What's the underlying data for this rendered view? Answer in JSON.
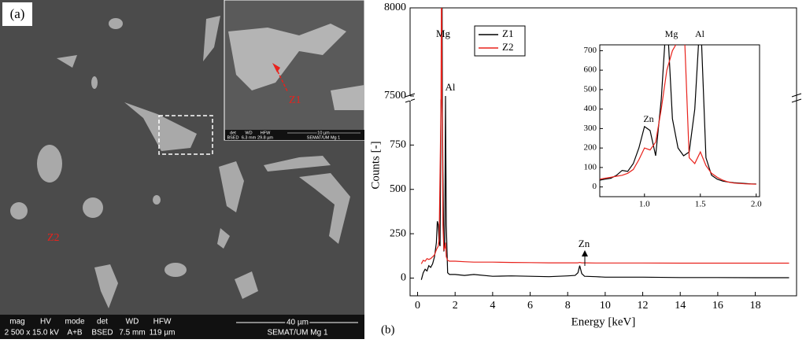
{
  "micrograph": {
    "label": "(a)",
    "zones": [
      "Z1",
      "Z2"
    ],
    "databar": {
      "fields": [
        [
          "mag",
          "2 500 x"
        ],
        [
          "HV",
          "15.0 kV"
        ],
        [
          "mode",
          "A+B"
        ],
        [
          "det",
          "BSED"
        ],
        [
          "WD",
          "7.5 mm"
        ],
        [
          "HFW",
          "119 µm"
        ]
      ],
      "scale": "40 µm",
      "lab": "SEMAT/UM Mg 1"
    },
    "inset_databar": {
      "fields": [
        [
          "det",
          "BSED"
        ],
        [
          "WD",
          "6.3 mm"
        ],
        [
          "HFW",
          "29.8 µm"
        ]
      ],
      "scale": "10 µm",
      "lab": "SEMAT/UM Mg 1"
    }
  },
  "chart_data": [
    {
      "type": "line",
      "label": "(b)",
      "xlabel": "Energy [keV]",
      "ylabel": "Counts [-]",
      "x": [
        0.2,
        0.3,
        0.4,
        0.5,
        0.6,
        0.7,
        0.8,
        0.9,
        1.0,
        1.05,
        1.1,
        1.15,
        1.2,
        1.25,
        1.28,
        1.3,
        1.32,
        1.35,
        1.4,
        1.45,
        1.49,
        1.53,
        1.6,
        1.7,
        2.0,
        2.5,
        3,
        4,
        5,
        6,
        7,
        8,
        8.4,
        8.55,
        8.64,
        8.75,
        8.9,
        9.5,
        10,
        12,
        14,
        16,
        18,
        19.8
      ],
      "series": [
        {
          "name": "Z1",
          "color": "#000000",
          "values": [
            -10,
            30,
            50,
            40,
            70,
            60,
            80,
            120,
            200,
            320,
            300,
            200,
            180,
            2000,
            5000,
            8400,
            3000,
            600,
            150,
            200,
            7480,
            300,
            30,
            20,
            20,
            15,
            20,
            10,
            12,
            10,
            8,
            12,
            15,
            30,
            70,
            25,
            10,
            8,
            5,
            5,
            3,
            3,
            2,
            2
          ]
        },
        {
          "name": "Z2",
          "color": "#e8221c",
          "values": [
            80,
            100,
            95,
            110,
            105,
            110,
            120,
            130,
            160,
            170,
            180,
            220,
            600,
            3000,
            8400,
            4000,
            900,
            300,
            160,
            170,
            200,
            120,
            100,
            95,
            95,
            92,
            90,
            90,
            88,
            87,
            86,
            86,
            86,
            86,
            88,
            86,
            86,
            85,
            85,
            85,
            84,
            84,
            84,
            84
          ]
        }
      ],
      "xlim": [
        -0.4,
        20.2
      ],
      "xticks": [
        0,
        2,
        4,
        6,
        8,
        10,
        12,
        14,
        16,
        18
      ],
      "ylim": [
        -100,
        8000
      ],
      "ybreak": [
        1000,
        7500
      ],
      "yticks": [
        0,
        250,
        500,
        750,
        7500,
        8000
      ],
      "legend": "upper left",
      "annotations": [
        "Mg",
        "Al",
        "Zn"
      ]
    },
    {
      "type": "line",
      "x": [
        0.6,
        0.65,
        0.7,
        0.75,
        0.8,
        0.85,
        0.9,
        0.95,
        1.0,
        1.05,
        1.1,
        1.15,
        1.2,
        1.25,
        1.3,
        1.35,
        1.4,
        1.45,
        1.5,
        1.55,
        1.6,
        1.65,
        1.7,
        1.75,
        1.8,
        1.85,
        1.9,
        1.95,
        2.0
      ],
      "series": [
        {
          "color": "#000000",
          "values": [
            35,
            40,
            45,
            60,
            85,
            80,
            120,
            200,
            310,
            290,
            160,
            450,
            900,
            350,
            200,
            160,
            180,
            400,
            900,
            150,
            60,
            40,
            30,
            25,
            22,
            20,
            18,
            16,
            15
          ]
        },
        {
          "color": "#e8221c",
          "values": [
            40,
            45,
            50,
            55,
            60,
            70,
            90,
            140,
            200,
            190,
            230,
            400,
            600,
            700,
            750,
            900,
            150,
            120,
            180,
            110,
            70,
            50,
            35,
            25,
            20,
            18,
            16,
            15,
            14
          ]
        }
      ],
      "xlim": [
        0.6,
        2.03
      ],
      "xticks": [
        {
          "value": 1,
          "label": "1.0"
        },
        {
          "value": 1.5,
          "label": "1.5"
        },
        {
          "value": 2,
          "label": "2.0"
        }
      ],
      "ylim": [
        -50,
        730
      ],
      "yticks": [
        0,
        100,
        200,
        300,
        400,
        500,
        600,
        700
      ],
      "annotations": [
        "Mg",
        "Al",
        "Zn"
      ]
    }
  ]
}
